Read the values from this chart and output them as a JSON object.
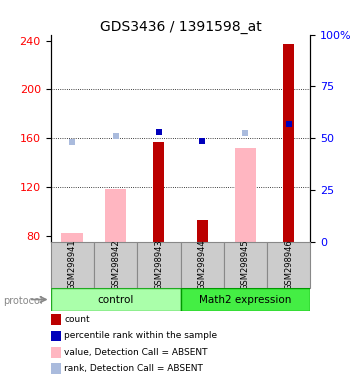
{
  "title": "GDS3436 / 1391598_at",
  "samples": [
    "GSM298941",
    "GSM298942",
    "GSM298943",
    "GSM298944",
    "GSM298945",
    "GSM298946"
  ],
  "ylim_left": [
    75,
    245
  ],
  "ylim_right": [
    0,
    100
  ],
  "yticks_left": [
    80,
    120,
    160,
    200,
    240
  ],
  "yticks_right": [
    0,
    25,
    50,
    75,
    100
  ],
  "bars_dark_red": {
    "values": [
      null,
      null,
      157,
      93,
      null,
      237
    ],
    "color": "#BB0000"
  },
  "bars_pink": {
    "values": [
      82,
      118,
      null,
      null,
      152,
      null
    ],
    "color": "#FFB6C1"
  },
  "dots_dark_blue": {
    "values": [
      null,
      null,
      165,
      158,
      null,
      172
    ],
    "color": "#0000BB"
  },
  "dots_light_blue": {
    "values": [
      157,
      162,
      null,
      null,
      164,
      null
    ],
    "color": "#AABBDD"
  },
  "title_fontsize": 10,
  "protocol_label": "protocol",
  "background_color": "#ffffff",
  "control_color": "#AAFFAA",
  "math2_color": "#44EE44",
  "sample_box_color": "#CCCCCC"
}
